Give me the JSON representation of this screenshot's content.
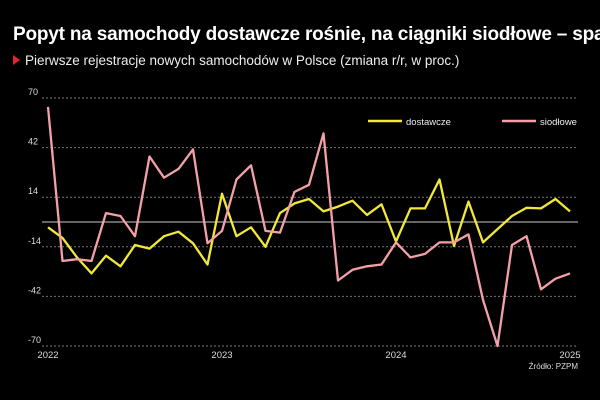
{
  "header": {
    "title": "Popyt na samochody dostawcze rośnie, na ciągniki siodłowe – spada",
    "subtitle": "Pierwsze rejestracje nowych samochodów w Polsce (zmiana r/r, w proc.)"
  },
  "source": "Źródło: PZPM",
  "chart_data": {
    "type": "line",
    "title": "Popyt na samochody dostawcze rośnie, na ciągniki siodłowe – spada",
    "subtitle": "Pierwsze rejestracje nowych samochodów w Polsce (zmiana r/r, w proc.)",
    "xlabel": "",
    "ylabel": "",
    "x_start": "2022-01",
    "x_end": "2025-01",
    "x_ticks": [
      "2022",
      "2023",
      "2024",
      "2025"
    ],
    "y_ticks": [
      70,
      42,
      14,
      -14,
      -42,
      -70
    ],
    "ylim": [
      -70,
      70
    ],
    "grid": "horizontal dashed",
    "zero_line": true,
    "legend": "top-right",
    "series": [
      {
        "name": "dostawcze",
        "color": "#f2e838",
        "values": [
          -3,
          -9,
          -20,
          -29,
          -19,
          -25,
          -13,
          -15,
          -8,
          -5.5,
          -12,
          -24,
          16,
          -8,
          -3,
          -14,
          5,
          10.5,
          13,
          6,
          8.7,
          12,
          4,
          10,
          -11,
          7.7,
          7.7,
          24,
          -13.5,
          11.5,
          -11.5,
          -4,
          3.4,
          8,
          7.7,
          13,
          6
        ]
      },
      {
        "name": "siodłowe",
        "color": "#f4a0a8",
        "values": [
          65,
          -22,
          -21,
          -22,
          5,
          3.4,
          -8,
          37,
          25,
          30,
          41,
          -12,
          -5,
          24,
          32,
          -5,
          -6,
          17,
          21,
          50,
          -33,
          -27,
          -25,
          -24,
          -11.5,
          -20,
          -18,
          -11.5,
          -11.5,
          -7,
          -44,
          -70,
          -13,
          -8,
          -38,
          -32,
          -29
        ]
      }
    ]
  }
}
